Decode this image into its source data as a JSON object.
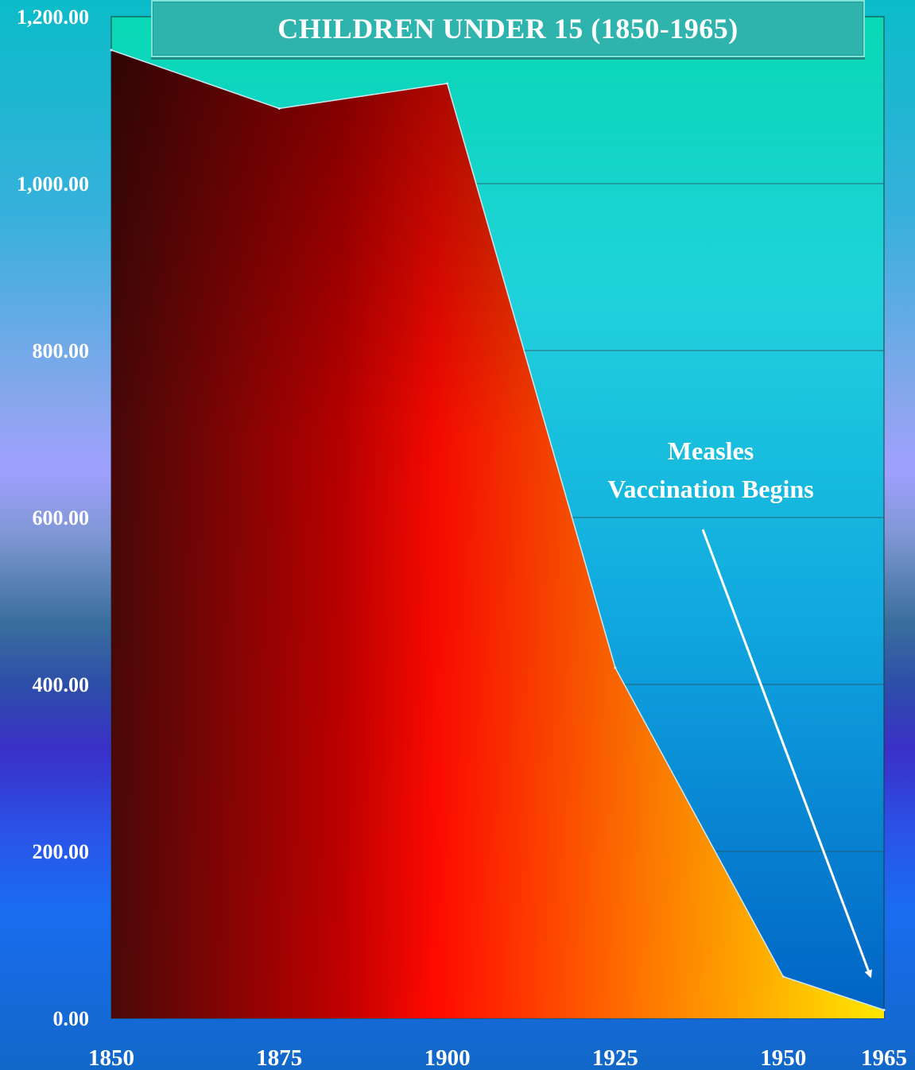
{
  "chart_data": {
    "type": "area",
    "title": "CHILDREN UNDER 15 (1850-1965)",
    "x": [
      1850,
      1875,
      1900,
      1925,
      1950,
      1965
    ],
    "values": [
      1160,
      1090,
      1120,
      420,
      50,
      10
    ],
    "x_tick_labels": [
      "1850",
      "1875",
      "1900",
      "1925",
      "1950",
      "1965"
    ],
    "y_tick_labels": [
      "0.00",
      "200.00",
      "400.00",
      "600.00",
      "800.00",
      "1,000.00",
      "1,200.00"
    ],
    "y_ticks": [
      0,
      200,
      400,
      600,
      800,
      1000,
      1200
    ],
    "xlim": [
      1850,
      1965
    ],
    "ylim": [
      0,
      1200
    ],
    "grid": true,
    "annotation": {
      "lines": [
        "Measles",
        "Vaccination Begins"
      ],
      "arrow_target": [
        1963,
        50
      ]
    }
  },
  "colors": {
    "plot_top": "#08d4b8",
    "plot_bottom": "#0060c8",
    "area_dark": "#4a0808",
    "area_mid": "#ff0a00",
    "area_orange": "#ff8a00",
    "area_yellow": "#ffe800"
  }
}
